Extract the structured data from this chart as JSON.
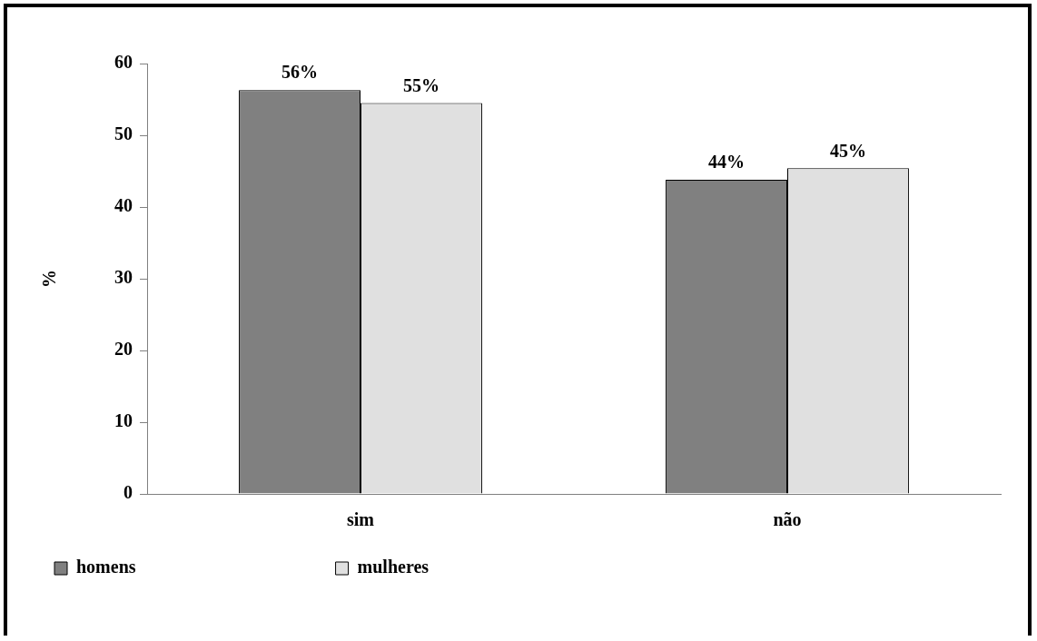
{
  "chart_data": {
    "type": "bar",
    "ylabel": "%",
    "categories": [
      "sim",
      "não"
    ],
    "series": [
      {
        "name": "homens",
        "color": "#808080",
        "values": [
          56.3,
          43.8
        ],
        "value_labels": [
          "56%",
          "44%"
        ]
      },
      {
        "name": "mulheres",
        "color": "#e0e0e0",
        "values": [
          54.5,
          45.4
        ],
        "value_labels": [
          "55%",
          "45%"
        ]
      }
    ],
    "ylim": [
      0,
      60
    ],
    "yticks": [
      0,
      10,
      20,
      30,
      40,
      50,
      60
    ],
    "grid": false,
    "legend": "bottom left"
  }
}
